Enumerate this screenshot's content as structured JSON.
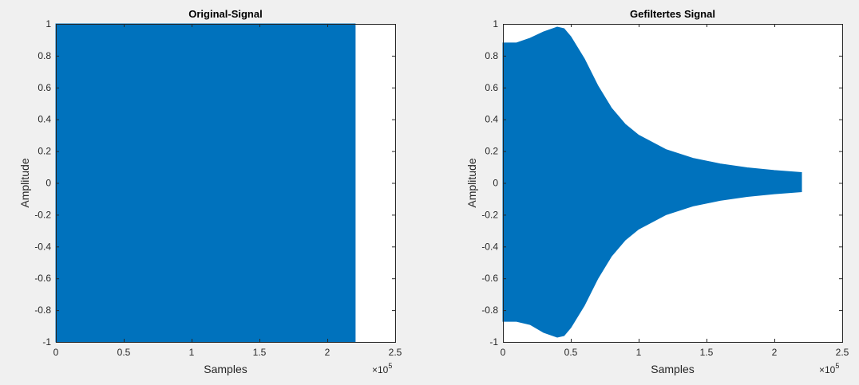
{
  "chart_data": [
    {
      "type": "area",
      "title": "Original-Signal",
      "xlabel": "Samples",
      "ylabel": "Amplitude",
      "xlim": [
        0,
        250000
      ],
      "ylim": [
        -1,
        1
      ],
      "x_exponent_base": "×10",
      "x_exponent_power": "5",
      "xticks": [
        0,
        50000,
        100000,
        150000,
        200000,
        250000
      ],
      "xtick_labels": [
        "0",
        "0.5",
        "1",
        "1.5",
        "2",
        "2.5"
      ],
      "yticks": [
        -1,
        -0.8,
        -0.6,
        -0.4,
        -0.2,
        0,
        0.2,
        0.4,
        0.6,
        0.8,
        1
      ],
      "ytick_labels": [
        "-1",
        "-0.8",
        "-0.6",
        "-0.4",
        "-0.2",
        "0",
        "0.2",
        "0.4",
        "0.6",
        "0.8",
        "1"
      ],
      "color": "#0072BD",
      "grid": false,
      "series": [
        {
          "x": [
            0,
            220500
          ],
          "upper": [
            1,
            1
          ],
          "lower": [
            -1,
            -1
          ]
        }
      ]
    },
    {
      "type": "area",
      "title": "Gefiltertes Signal",
      "xlabel": "Samples",
      "ylabel": "Amplitude",
      "xlim": [
        0,
        250000
      ],
      "ylim": [
        -1,
        1
      ],
      "x_exponent_base": "×10",
      "x_exponent_power": "5",
      "xticks": [
        0,
        50000,
        100000,
        150000,
        200000,
        250000
      ],
      "xtick_labels": [
        "0",
        "0.5",
        "1",
        "1.5",
        "2",
        "2.5"
      ],
      "yticks": [
        -1,
        -0.8,
        -0.6,
        -0.4,
        -0.2,
        0,
        0.2,
        0.4,
        0.6,
        0.8,
        1
      ],
      "ytick_labels": [
        "-1",
        "-0.8",
        "-0.6",
        "-0.4",
        "-0.2",
        "0",
        "0.2",
        "0.4",
        "0.6",
        "0.8",
        "1"
      ],
      "color": "#0072BD",
      "grid": false,
      "series": [
        {
          "x": [
            0,
            10000,
            20000,
            30000,
            40000,
            45000,
            50000,
            60000,
            70000,
            80000,
            90000,
            100000,
            120000,
            140000,
            160000,
            180000,
            200000,
            220000
          ],
          "upper": [
            0.88,
            0.88,
            0.91,
            0.95,
            0.98,
            0.97,
            0.92,
            0.78,
            0.61,
            0.47,
            0.37,
            0.3,
            0.21,
            0.155,
            0.12,
            0.095,
            0.078,
            0.065
          ],
          "lower": [
            -0.87,
            -0.87,
            -0.89,
            -0.94,
            -0.97,
            -0.96,
            -0.91,
            -0.77,
            -0.6,
            -0.46,
            -0.36,
            -0.29,
            -0.2,
            -0.145,
            -0.11,
            -0.085,
            -0.068,
            -0.055
          ]
        }
      ]
    }
  ]
}
